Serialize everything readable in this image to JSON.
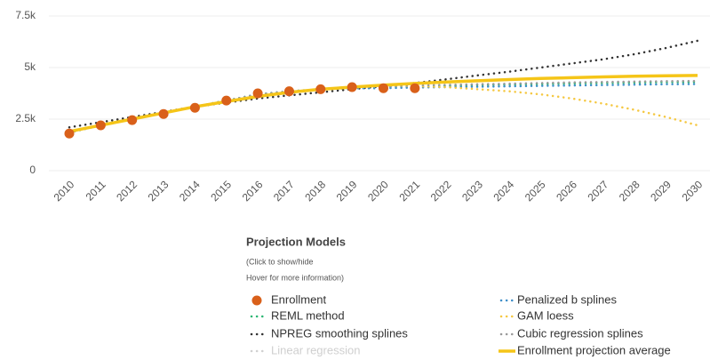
{
  "chart_data": {
    "type": "line",
    "categories": [
      "2010",
      "2011",
      "2012",
      "2013",
      "2014",
      "2015",
      "2016",
      "2017",
      "2018",
      "2019",
      "2020",
      "2021",
      "2022",
      "2023",
      "2024",
      "2025",
      "2026",
      "2027",
      "2028",
      "2029",
      "2030"
    ],
    "ylim": [
      0,
      7500
    ],
    "yticks": [
      0,
      {
        "value": 2500,
        "label": "2.5k"
      },
      {
        "value": 5000,
        "label": "5k"
      },
      {
        "value": 7500,
        "label": "7.5k"
      }
    ],
    "grid": true,
    "legend": {
      "title": "Projection Models",
      "subtitle": [
        "(Click to show/hide",
        "Hover for more information)"
      ],
      "position": "bottom"
    },
    "series": [
      {
        "name": "Enrollment",
        "color": "#d9601a",
        "style": "markers",
        "visible": true,
        "values": [
          1800,
          2200,
          2450,
          2750,
          3050,
          3400,
          3750,
          3850,
          3950,
          4050,
          4000,
          4000,
          null,
          null,
          null,
          null,
          null,
          null,
          null,
          null,
          null
        ]
      },
      {
        "name": "REML method",
        "color": "#2bb673",
        "style": "dotted",
        "visible": true,
        "values": [
          1850,
          2200,
          2500,
          2800,
          3100,
          3400,
          3700,
          3850,
          3950,
          4050,
          4050,
          4100,
          4120,
          4150,
          4180,
          4200,
          4230,
          4250,
          4270,
          4290,
          4300
        ]
      },
      {
        "name": "NPREG smoothing splines",
        "color": "#333333",
        "style": "dotted",
        "visible": true,
        "values": [
          2100,
          2350,
          2600,
          2850,
          3100,
          3300,
          3500,
          3650,
          3800,
          3950,
          4100,
          4250,
          4430,
          4620,
          4800,
          5000,
          5200,
          5400,
          5650,
          5950,
          6300
        ]
      },
      {
        "name": "Linear regression",
        "color": "#d0d0d0",
        "style": "dotted",
        "visible": false
      },
      {
        "name": "Penalized b splines",
        "color": "#3f8fc9",
        "style": "dotted",
        "visible": true,
        "values": [
          1850,
          2200,
          2500,
          2800,
          3100,
          3400,
          3700,
          3850,
          3950,
          4000,
          4000,
          4030,
          4050,
          4070,
          4090,
          4110,
          4130,
          4150,
          4170,
          4190,
          4200
        ]
      },
      {
        "name": "GAM loess",
        "color": "#f5c842",
        "style": "dotted",
        "visible": true,
        "values": [
          1850,
          2200,
          2500,
          2800,
          3100,
          3350,
          3600,
          3800,
          3950,
          4050,
          4100,
          4100,
          4050,
          3950,
          3850,
          3700,
          3500,
          3250,
          2950,
          2600,
          2200
        ]
      },
      {
        "name": "Cubic regression splines",
        "color": "#9a9a9a",
        "style": "dotted",
        "visible": true,
        "values": [
          1850,
          2200,
          2500,
          2800,
          3100,
          3400,
          3700,
          3850,
          3950,
          4050,
          4080,
          4130,
          4160,
          4190,
          4220,
          4250,
          4280,
          4300,
          4320,
          4340,
          4350
        ]
      },
      {
        "name": "Enrollment projection average",
        "color": "#f5c518",
        "style": "solid",
        "visible": true,
        "values": [
          1900,
          2200,
          2500,
          2800,
          3100,
          3350,
          3600,
          3800,
          3950,
          4050,
          4150,
          4230,
          4300,
          4360,
          4420,
          4470,
          4510,
          4550,
          4580,
          4600,
          4620
        ]
      }
    ]
  }
}
